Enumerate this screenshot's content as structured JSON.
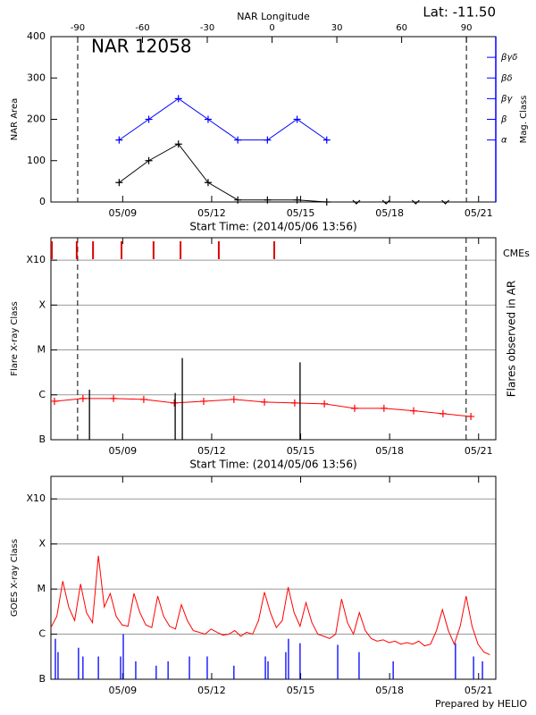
{
  "header": {
    "lat": "Lat: -11.50",
    "credit": "Prepared by HELIO"
  },
  "chart_data": [
    {
      "type": "line",
      "title": "NAR 12058",
      "xlabel": "Start Time: (2014/05/06 13:56)",
      "x2label": "NAR Longitude",
      "ylabel": "NAR Area",
      "y2label": "Mag. Class",
      "y2color": "#0000ff",
      "xlim": [
        0,
        15
      ],
      "xticks": [
        {
          "value": 2.42,
          "label": "05/09"
        },
        {
          "value": 5.42,
          "label": "05/12"
        },
        {
          "value": 8.42,
          "label": "05/15"
        },
        {
          "value": 11.42,
          "label": "05/18"
        },
        {
          "value": 14.42,
          "label": "05/21"
        }
      ],
      "x2lim": [
        -102.4,
        103.6
      ],
      "x2ticks": [
        -90,
        -60,
        -30,
        0,
        30,
        60,
        90
      ],
      "x2lines": [
        -90,
        90
      ],
      "ylim": [
        0,
        400
      ],
      "yticks": [
        0,
        100,
        200,
        300,
        400
      ],
      "y2lim": [
        0,
        400
      ],
      "y2ticks": [
        {
          "value": 150,
          "label": "α"
        },
        {
          "value": 200,
          "label": "β"
        },
        {
          "value": 250,
          "label": "βγ"
        },
        {
          "value": 300,
          "label": "βδ"
        },
        {
          "value": 350,
          "label": "βγδ"
        }
      ],
      "log": false,
      "grid": false,
      "series": [
        {
          "style": "line",
          "marker": "plus",
          "color": "#000000",
          "x": [
            2.3,
            3.3,
            4.3,
            5.3,
            6.3,
            7.3,
            8.3,
            9.3
          ],
          "values": [
            47,
            100,
            140,
            47,
            5,
            5,
            5,
            0
          ]
        },
        {
          "style": "line",
          "marker": "plus",
          "color": "#0000ff",
          "axis": "y2",
          "x": [
            2.3,
            3.3,
            4.3,
            5.3,
            6.3,
            7.3,
            8.3,
            9.3
          ],
          "values": [
            150,
            200,
            250,
            200,
            150,
            150,
            200,
            150
          ]
        },
        {
          "style": "points",
          "marker": "v",
          "color": "#000000",
          "x": [
            10.3,
            11.3,
            12.3,
            13.3
          ],
          "values": [
            0,
            0,
            0,
            0
          ]
        }
      ]
    },
    {
      "type": "line",
      "xlabel": "Start Time: (2014/05/06 13:56)",
      "ylabel": "Flare X-ray Class",
      "y2label": "Flares observed in AR",
      "y2color": "#000000",
      "xlim": [
        0,
        15
      ],
      "xticks": [
        {
          "value": 2.42,
          "label": "05/09"
        },
        {
          "value": 5.42,
          "label": "05/12"
        },
        {
          "value": 8.42,
          "label": "05/15"
        },
        {
          "value": 11.42,
          "label": "05/18"
        },
        {
          "value": 14.42,
          "label": "05/21"
        }
      ],
      "xlines": [
        0.9,
        14.0
      ],
      "ylim": [
        1e-07,
        0.00316
      ],
      "yticks": [
        {
          "value": 1e-07,
          "label": "B"
        },
        {
          "value": 1e-06,
          "label": "C"
        },
        {
          "value": 1e-05,
          "label": "M"
        },
        {
          "value": 0.0001,
          "label": "X"
        },
        {
          "value": 0.001,
          "label": "X10"
        }
      ],
      "log": true,
      "grid": true,
      "series": [
        {
          "style": "line",
          "marker": "plus",
          "color": "#ff0000",
          "x": [
            0.12,
            1.08,
            2.11,
            3.13,
            4.16,
            5.15,
            6.17,
            7.2,
            8.22,
            9.22,
            10.24,
            11.23,
            12.23,
            13.22,
            14.16
          ],
          "values": [
            7.2e-07,
            8.3e-07,
            8.3e-07,
            7.9e-07,
            6.6e-07,
            7.2e-07,
            7.9e-07,
            6.9e-07,
            6.6e-07,
            6.3e-07,
            5e-07,
            5e-07,
            4.4e-07,
            3.8e-07,
            3.3e-07
          ]
        },
        {
          "style": "stems",
          "color": "#000000",
          "x": [
            1.3,
            4.19,
            4.43,
            8.4
          ],
          "values": [
            1.3e-06,
            1.1e-06,
            6.6e-06,
            5.3e-06
          ]
        },
        {
          "style": "top-ticks",
          "label": "CMEs",
          "color": "#dd0000",
          "x": [
            0.03,
            0.87,
            1.42,
            2.38,
            3.46,
            4.37,
            5.66,
            7.53
          ]
        }
      ]
    },
    {
      "type": "line",
      "ylabel": "GOES X-ray Class",
      "xlim": [
        0,
        15
      ],
      "xticks": [
        {
          "value": 2.42,
          "label": "05/09"
        },
        {
          "value": 5.42,
          "label": "05/12"
        },
        {
          "value": 8.42,
          "label": "05/15"
        },
        {
          "value": 11.42,
          "label": "05/18"
        },
        {
          "value": 14.42,
          "label": "05/21"
        }
      ],
      "ylim": [
        1e-07,
        0.00316
      ],
      "yticks": [
        {
          "value": 1e-07,
          "label": "B"
        },
        {
          "value": 1e-06,
          "label": "C"
        },
        {
          "value": 1e-05,
          "label": "M"
        },
        {
          "value": 0.0001,
          "label": "X"
        },
        {
          "value": 0.001,
          "label": "X10"
        }
      ],
      "log": true,
      "grid": true,
      "series": [
        {
          "style": "line",
          "color": "#ff0000",
          "x": [
            0,
            0.2,
            0.4,
            0.6,
            0.8,
            1,
            1.2,
            1.4,
            1.6,
            1.8,
            2,
            2.2,
            2.4,
            2.6,
            2.8,
            3,
            3.2,
            3.4,
            3.6,
            3.8,
            4,
            4.2,
            4.4,
            4.6,
            4.8,
            5,
            5.2,
            5.4,
            5.6,
            5.8,
            6,
            6.2,
            6.4,
            6.6,
            6.8,
            7,
            7.2,
            7.4,
            7.6,
            7.8,
            8,
            8.2,
            8.4,
            8.6,
            8.8,
            9,
            9.2,
            9.4,
            9.6,
            9.8,
            10,
            10.2,
            10.4,
            10.6,
            10.8,
            11,
            11.2,
            11.4,
            11.6,
            11.8,
            12,
            12.2,
            12.4,
            12.6,
            12.8,
            13,
            13.2,
            13.4,
            13.6,
            13.8,
            14,
            14.2,
            14.4,
            14.6,
            14.8
          ],
          "values": [
            1.4e-06,
            2.5e-06,
            1.5e-05,
            4e-06,
            2e-06,
            1.3e-05,
            3e-06,
            1.8e-06,
            5.5e-05,
            4e-06,
            8e-06,
            2.5e-06,
            1.6e-06,
            1.5e-06,
            8e-06,
            3e-06,
            1.6e-06,
            1.4e-06,
            7e-06,
            2.5e-06,
            1.5e-06,
            1.3e-06,
            4.5e-06,
            2e-06,
            1.2e-06,
            1.1e-06,
            1e-06,
            1.3e-06,
            1.1e-06,
            9.5e-07,
            1e-06,
            1.2e-06,
            9e-07,
            1.1e-06,
            1e-06,
            2e-06,
            8.5e-06,
            3e-06,
            1.4e-06,
            2e-06,
            1.1e-05,
            3e-06,
            1.5e-06,
            5e-06,
            1.8e-06,
            1e-06,
            9e-07,
            8e-07,
            1e-06,
            6e-06,
            1.8e-06,
            1e-06,
            3e-06,
            1.2e-06,
            8e-07,
            7e-07,
            7.5e-07,
            6.5e-07,
            7e-07,
            6e-07,
            6.5e-07,
            6e-07,
            7e-07,
            5.5e-07,
            6e-07,
            1.2e-06,
            3.5e-06,
            1.2e-06,
            6e-07,
            1.5e-06,
            7e-06,
            1.5e-06,
            6e-07,
            4e-07,
            3.5e-07
          ]
        },
        {
          "style": "stems",
          "color": "#0000ff",
          "x": [
            0.15,
            0.24,
            0.93,
            1.08,
            1.6,
            2.35,
            2.44,
            2.86,
            3.55,
            3.95,
            4.67,
            5.27,
            6.17,
            7.23,
            7.32,
            7.92,
            8.01,
            8.4,
            9.67,
            10.39,
            11.54,
            13.64,
            14.25,
            14.55
          ],
          "values": [
            7.9e-07,
            4e-07,
            5e-07,
            3.2e-07,
            3.2e-07,
            3.2e-07,
            1e-06,
            2.5e-07,
            2e-07,
            2.5e-07,
            3.2e-07,
            3.2e-07,
            2e-07,
            3.2e-07,
            2.5e-07,
            4e-07,
            7.9e-07,
            6.3e-07,
            5.8e-07,
            4e-07,
            2.5e-07,
            6.3e-07,
            3.2e-07,
            2.5e-07
          ]
        }
      ]
    }
  ]
}
